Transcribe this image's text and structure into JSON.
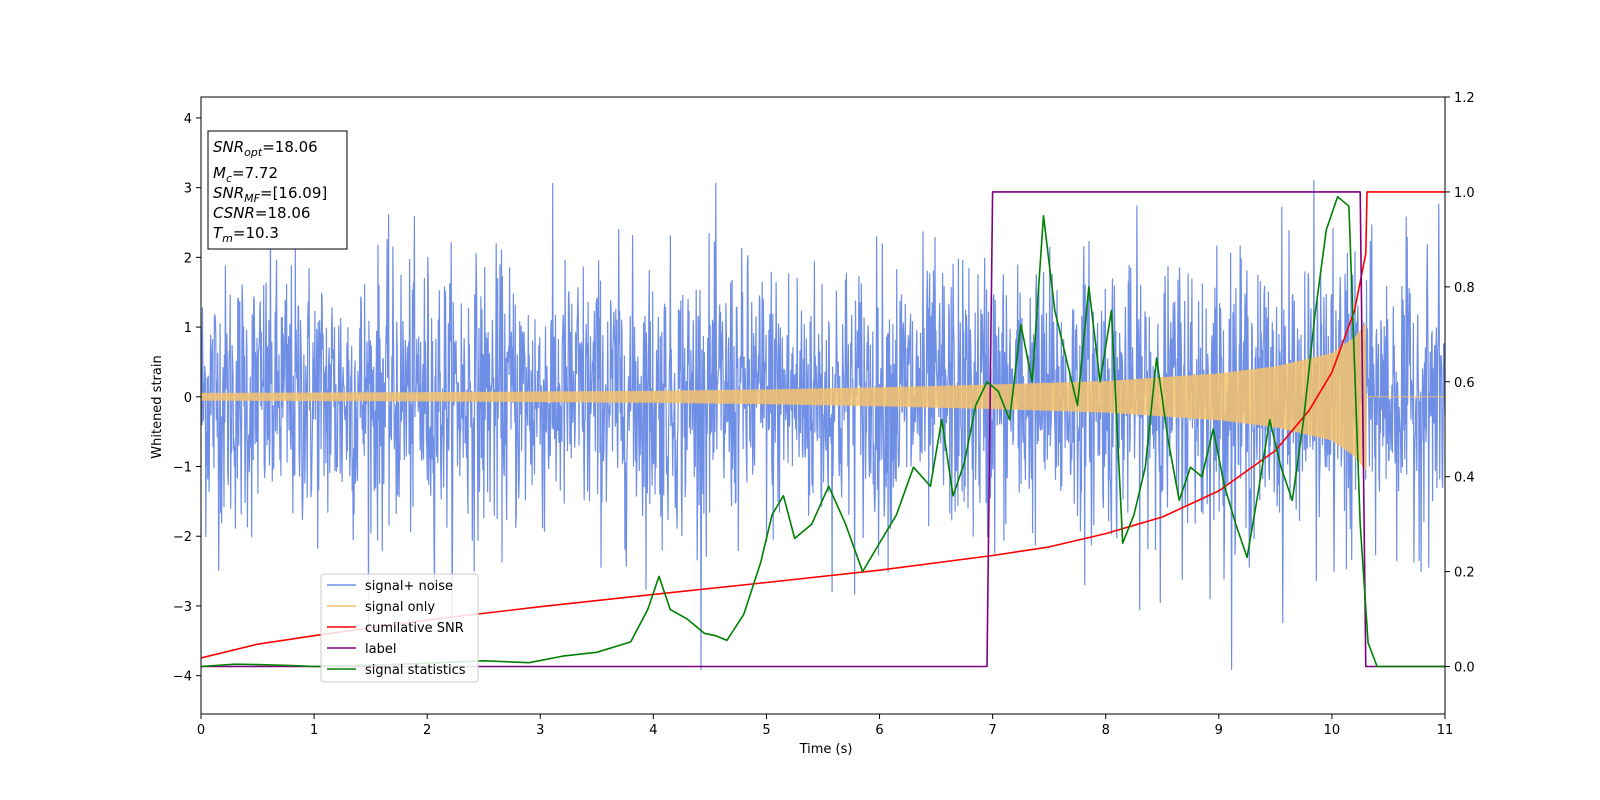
{
  "chart_data": {
    "type": "line",
    "title": "",
    "xlabel": "Time (s)",
    "ylabel": "Whitened strain",
    "y2label": "",
    "xlim": [
      0,
      11
    ],
    "ylim": [
      -4.55,
      4.3
    ],
    "y2lim": [
      -0.1,
      1.2
    ],
    "xticks": [
      "0",
      "1",
      "2",
      "3",
      "4",
      "5",
      "6",
      "7",
      "8",
      "9",
      "10",
      "11"
    ],
    "yticks": [
      "4",
      "3",
      "2",
      "1",
      "0",
      "−1",
      "−2",
      "−3",
      "−4"
    ],
    "y2ticks": [
      "1.2",
      "1.0",
      "0.8",
      "0.6",
      "0.4",
      "0.2",
      "0.0"
    ],
    "grid": false,
    "legend_position": "lower-left",
    "info_box": {
      "snr_opt": {
        "symbol": "SNR",
        "sub": "opt",
        "value": "=18.06"
      },
      "mc": {
        "symbol": "M",
        "sub": "c",
        "value": "=7.72"
      },
      "snr_mf": {
        "symbol": "SNR",
        "sub": "MF",
        "value": "=[16.09]"
      },
      "csnr": {
        "symbol": "CSNR",
        "value": "=18.06"
      },
      "tm": {
        "symbol": "T",
        "sub": "m",
        "value": "=10.3"
      }
    },
    "series": [
      {
        "name": "signal+ noise",
        "axis": "left",
        "color": "#6f8ee6",
        "description_values": {
          "noise_std": 0.95,
          "t_start": 0,
          "t_end": 11
        }
      },
      {
        "name": "signal only",
        "axis": "left",
        "color": "#f5c26b",
        "envelope": {
          "t": [
            0,
            1,
            2,
            3,
            4,
            5,
            6,
            7,
            8,
            9,
            9.5,
            10,
            10.2,
            10.3
          ],
          "amplitude": [
            0.05,
            0.055,
            0.06,
            0.07,
            0.08,
            0.1,
            0.13,
            0.17,
            0.22,
            0.33,
            0.43,
            0.62,
            0.85,
            1.05
          ]
        }
      },
      {
        "name": "cumilative SNR",
        "axis": "right",
        "color": "#ff0000",
        "x": [
          0,
          0.5,
          1,
          2,
          3,
          4,
          5,
          6,
          7,
          7.5,
          8,
          8.5,
          9,
          9.5,
          9.8,
          10,
          10.2,
          10.3,
          10.31,
          11
        ],
        "y": [
          0.018,
          0.047,
          0.065,
          0.098,
          0.126,
          0.152,
          0.177,
          0.203,
          0.234,
          0.252,
          0.28,
          0.315,
          0.37,
          0.455,
          0.54,
          0.62,
          0.75,
          0.87,
          1.0,
          1.0
        ]
      },
      {
        "name": "label",
        "axis": "right",
        "color": "#800080",
        "x": [
          0,
          6.95,
          7.0,
          10.25,
          10.3,
          11
        ],
        "y": [
          0,
          0,
          1,
          1,
          0,
          0
        ]
      },
      {
        "name": "signal statistics",
        "axis": "right",
        "color": "#008000",
        "x": [
          0,
          0.3,
          0.5,
          0.8,
          1,
          1.5,
          2,
          2.5,
          2.9,
          3.2,
          3.5,
          3.8,
          3.95,
          4.05,
          4.15,
          4.3,
          4.45,
          4.55,
          4.65,
          4.8,
          4.95,
          5.05,
          5.15,
          5.25,
          5.4,
          5.55,
          5.7,
          5.85,
          6.0,
          6.15,
          6.3,
          6.45,
          6.55,
          6.65,
          6.75,
          6.85,
          6.95,
          7.05,
          7.15,
          7.25,
          7.35,
          7.45,
          7.55,
          7.65,
          7.75,
          7.85,
          7.95,
          8.05,
          8.15,
          8.25,
          8.35,
          8.45,
          8.55,
          8.65,
          8.75,
          8.85,
          8.95,
          9.05,
          9.15,
          9.25,
          9.35,
          9.45,
          9.55,
          9.65,
          9.75,
          9.85,
          9.95,
          10.05,
          10.15,
          10.25,
          10.32,
          10.4,
          11
        ],
        "y": [
          0.0,
          0.005,
          0.004,
          0.002,
          0.0,
          0.003,
          0.007,
          0.012,
          0.008,
          0.022,
          0.03,
          0.052,
          0.12,
          0.19,
          0.12,
          0.1,
          0.07,
          0.065,
          0.055,
          0.11,
          0.22,
          0.32,
          0.36,
          0.27,
          0.3,
          0.38,
          0.3,
          0.2,
          0.26,
          0.32,
          0.42,
          0.38,
          0.52,
          0.36,
          0.43,
          0.55,
          0.6,
          0.58,
          0.52,
          0.72,
          0.6,
          0.95,
          0.75,
          0.65,
          0.55,
          0.8,
          0.6,
          0.75,
          0.26,
          0.32,
          0.42,
          0.65,
          0.48,
          0.35,
          0.42,
          0.4,
          0.5,
          0.38,
          0.3,
          0.23,
          0.37,
          0.52,
          0.42,
          0.35,
          0.52,
          0.74,
          0.92,
          0.99,
          0.97,
          0.3,
          0.05,
          0.0,
          0.0
        ]
      }
    ]
  }
}
